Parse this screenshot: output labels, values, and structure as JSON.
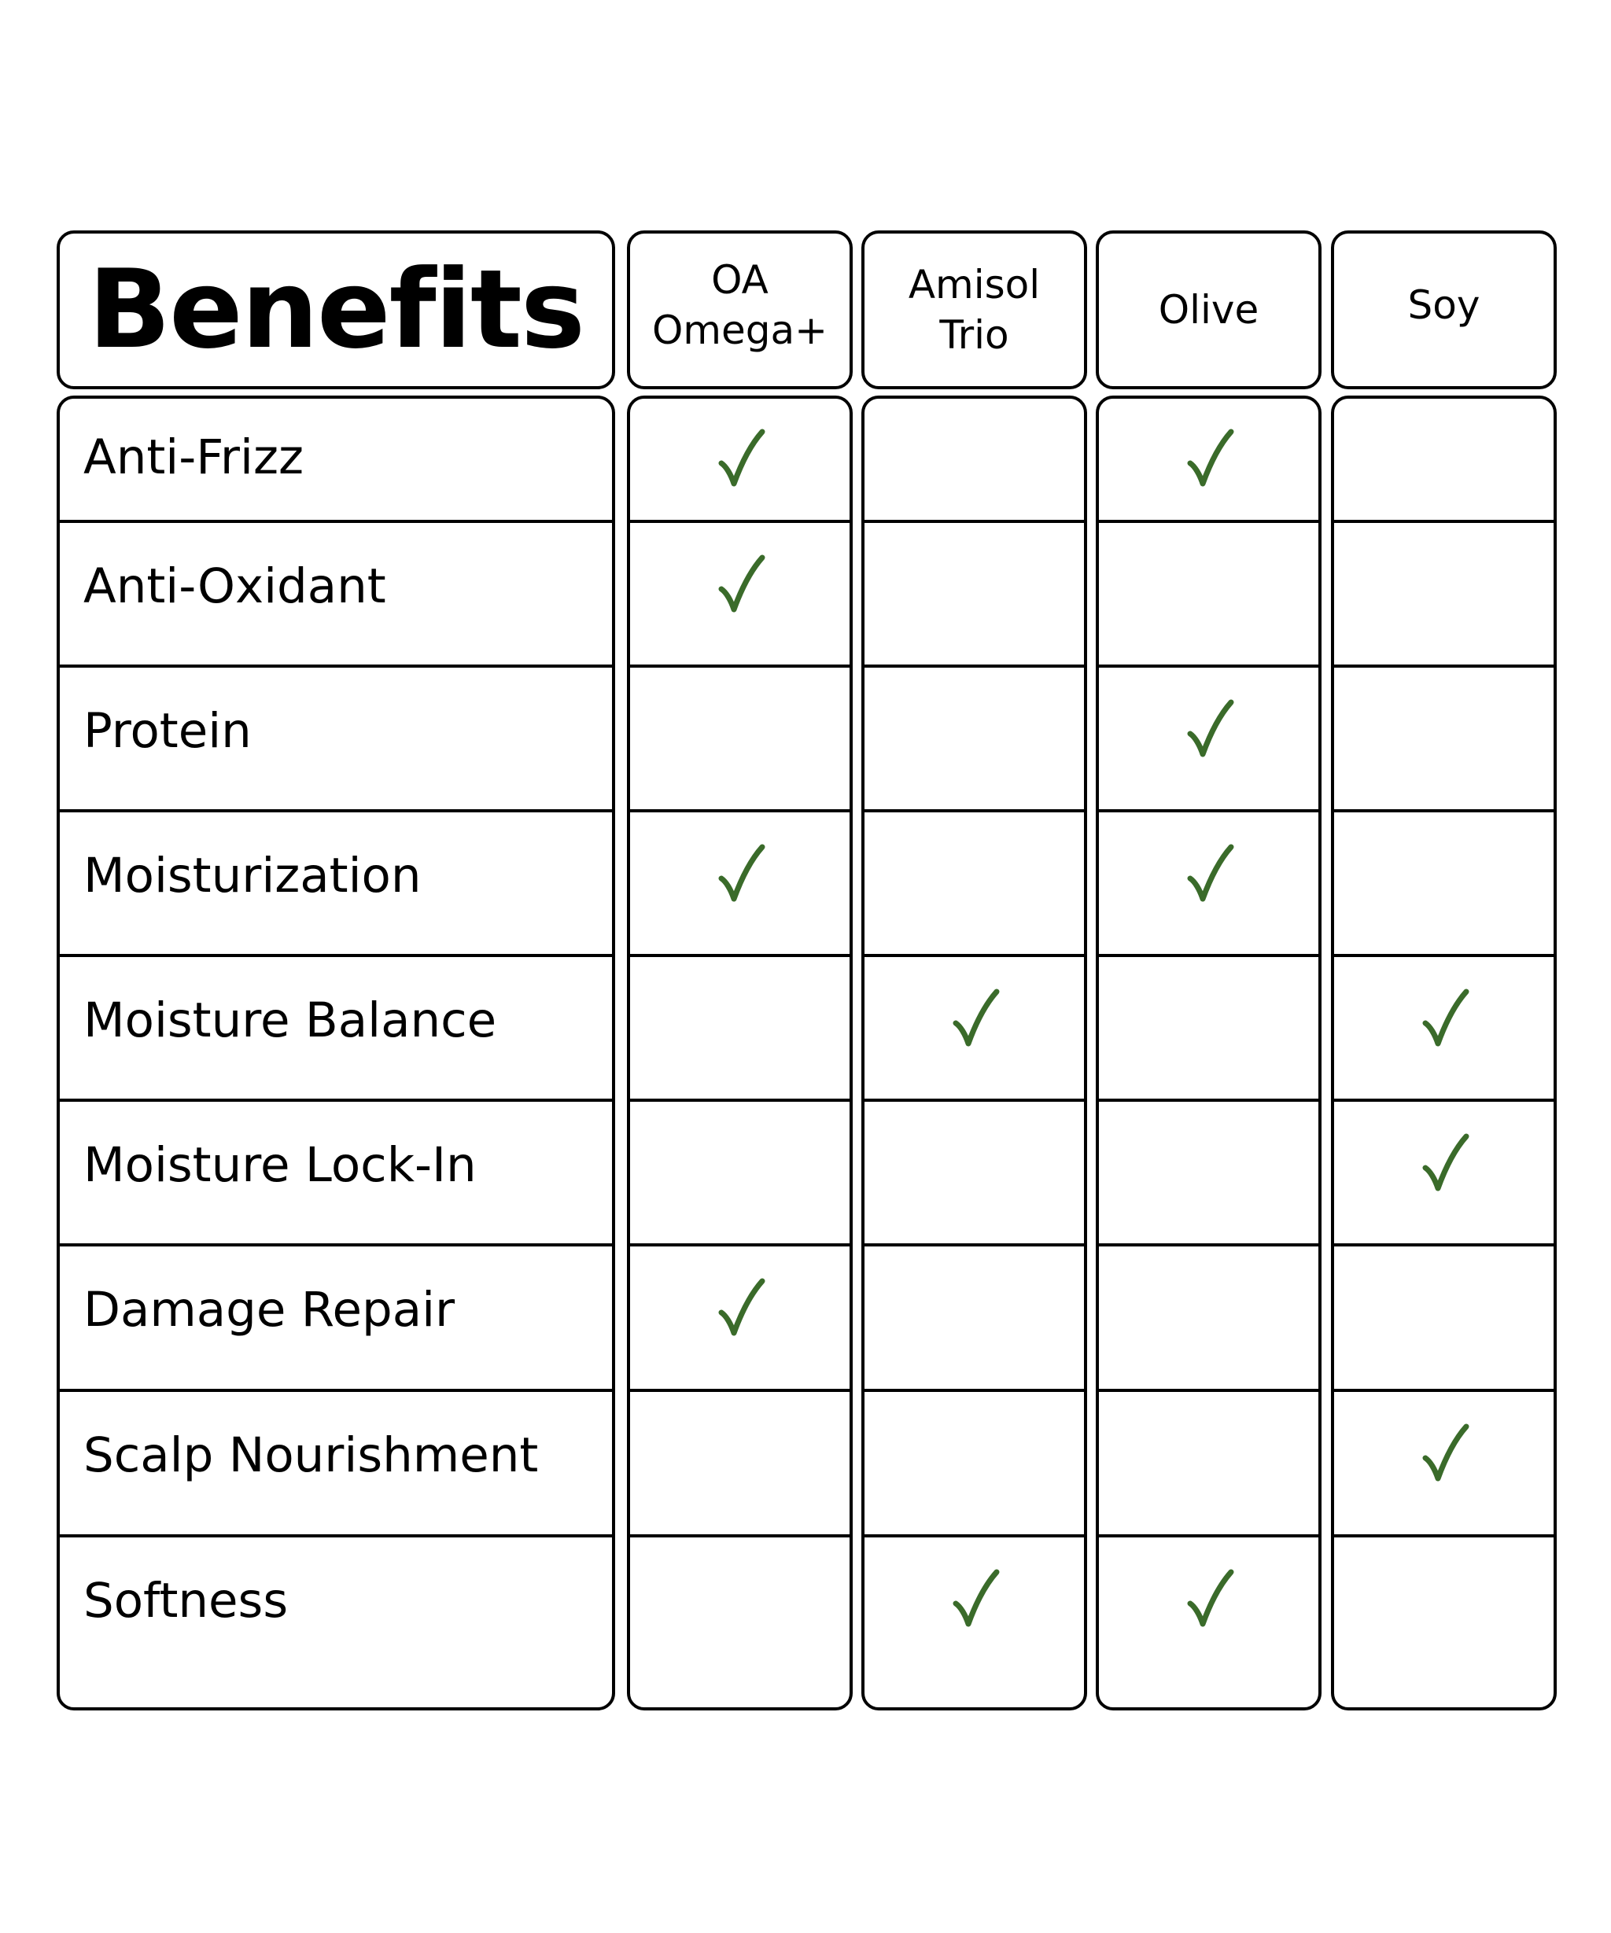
{
  "chart_data": {
    "type": "table",
    "title": "Benefits",
    "columns": [
      "OA\nOmega+",
      "Amisol\nTrio",
      "Olive",
      "Soy"
    ],
    "rows": [
      {
        "label": "Anti-Frizz",
        "checks": [
          true,
          false,
          true,
          false
        ]
      },
      {
        "label": "Anti-Oxidant",
        "checks": [
          true,
          false,
          false,
          false
        ]
      },
      {
        "label": "Protein",
        "checks": [
          false,
          false,
          true,
          false
        ]
      },
      {
        "label": "Moisturization",
        "checks": [
          true,
          false,
          true,
          false
        ]
      },
      {
        "label": "Moisture Balance",
        "checks": [
          false,
          true,
          false,
          true
        ]
      },
      {
        "label": "Moisture Lock-In",
        "checks": [
          false,
          false,
          false,
          true
        ]
      },
      {
        "label": "Damage Repair",
        "checks": [
          true,
          false,
          false,
          false
        ]
      },
      {
        "label": "Scalp Nourishment",
        "checks": [
          false,
          false,
          false,
          true
        ]
      },
      {
        "label": "Softness",
        "checks": [
          false,
          true,
          true,
          false
        ]
      }
    ]
  },
  "colors": {
    "check": "#3a6b2a",
    "border": "#000000",
    "background": "#ffffff"
  }
}
